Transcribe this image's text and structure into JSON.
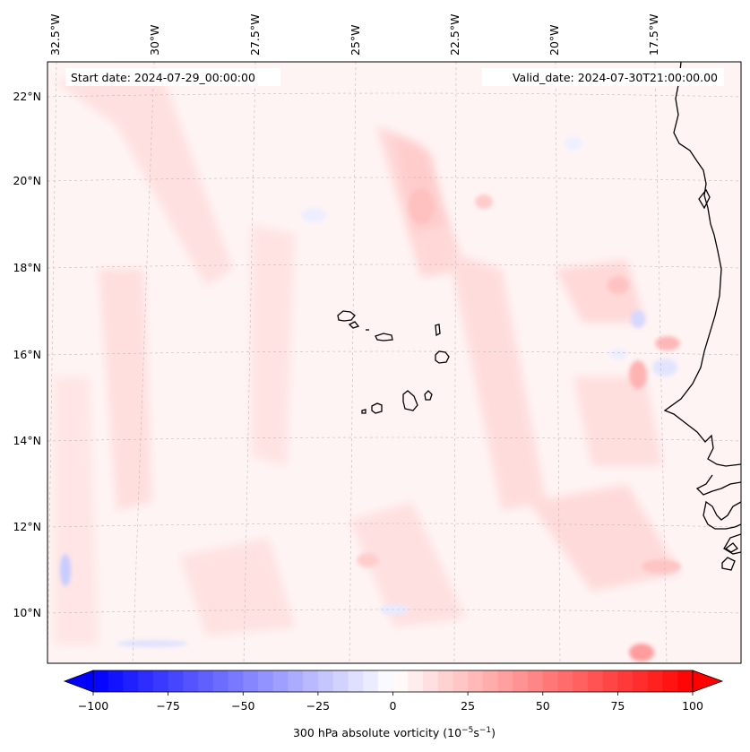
{
  "map": {
    "start_label": "Start date: 2024-07-29_00:00:00",
    "valid_label": "Valid_date: 2024-07-30T21:00:00.00",
    "lon_labels": [
      "32.5°W",
      "30°W",
      "27.5°W",
      "25°W",
      "22.5°W",
      "20°W",
      "17.5°W"
    ],
    "lat_labels": [
      "22°N",
      "20°N",
      "18°N",
      "16°N",
      "14°N",
      "12°N",
      "10°N"
    ]
  },
  "colorbar": {
    "ticks": [
      "−100",
      "−75",
      "−50",
      "−25",
      "0",
      "25",
      "50",
      "75",
      "100"
    ],
    "label_prefix": "300 hPa absolute vorticity (10",
    "label_exp1": "−5",
    "label_mid": "s",
    "label_exp2": "−1",
    "label_suffix": ")",
    "min": -100,
    "max": 100,
    "colors": {
      "low": "#0000ff",
      "mid": "#ffffff",
      "high": "#ff0000"
    }
  },
  "colors": {
    "coast": "#000000",
    "grid": "#bbbbbb",
    "frame": "#000000"
  }
}
